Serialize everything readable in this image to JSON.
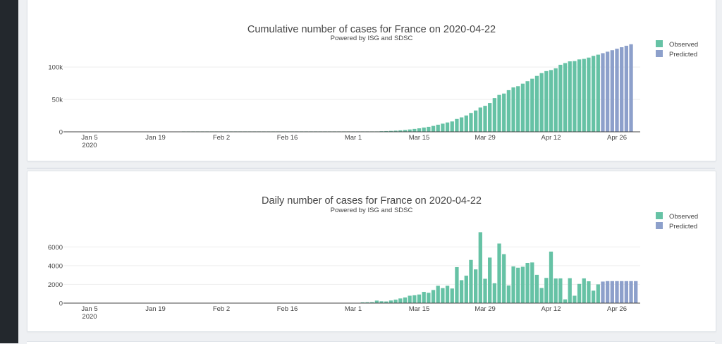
{
  "chart_data": [
    {
      "type": "bar",
      "title": "Cumulative number of cases for France on 2020-04-22",
      "subtitle": "Powered by ISG and SDSC",
      "start_date": "2020-01-01",
      "x_ticks": [
        {
          "date": "2020-01-05",
          "label": "Jan 5",
          "sublabel": "2020"
        },
        {
          "date": "2020-01-19",
          "label": "Jan 19"
        },
        {
          "date": "2020-02-02",
          "label": "Feb 2"
        },
        {
          "date": "2020-02-16",
          "label": "Feb 16"
        },
        {
          "date": "2020-03-01",
          "label": "Mar 1"
        },
        {
          "date": "2020-03-15",
          "label": "Mar 15"
        },
        {
          "date": "2020-03-29",
          "label": "Mar 29"
        },
        {
          "date": "2020-04-12",
          "label": "Apr 12"
        },
        {
          "date": "2020-04-26",
          "label": "Apr 26"
        }
      ],
      "ylim": [
        0,
        135000
      ],
      "y_ticks": [
        {
          "value": 0,
          "label": "0"
        },
        {
          "value": 50000,
          "label": "50k"
        },
        {
          "value": 100000,
          "label": "100k"
        }
      ],
      "legend_position": "top-right",
      "series": [
        {
          "name": "Observed",
          "color": "#66c2a5",
          "x": [
            "2020-01-25",
            "2020-01-26",
            "2020-01-27",
            "2020-01-28",
            "2020-01-29",
            "2020-01-30",
            "2020-01-31",
            "2020-02-01",
            "2020-02-02",
            "2020-02-03",
            "2020-02-04",
            "2020-02-05",
            "2020-02-06",
            "2020-02-07",
            "2020-02-08",
            "2020-02-09",
            "2020-02-10",
            "2020-02-11",
            "2020-02-12",
            "2020-02-13",
            "2020-02-14",
            "2020-02-15",
            "2020-02-16",
            "2020-02-17",
            "2020-02-18",
            "2020-02-19",
            "2020-02-20",
            "2020-02-21",
            "2020-02-22",
            "2020-02-23",
            "2020-02-24",
            "2020-02-25",
            "2020-02-26",
            "2020-02-27",
            "2020-02-28",
            "2020-02-29",
            "2020-03-01",
            "2020-03-02",
            "2020-03-03",
            "2020-03-04",
            "2020-03-05",
            "2020-03-06",
            "2020-03-07",
            "2020-03-08",
            "2020-03-09",
            "2020-03-10",
            "2020-03-11",
            "2020-03-12",
            "2020-03-13",
            "2020-03-14",
            "2020-03-15",
            "2020-03-16",
            "2020-03-17",
            "2020-03-18",
            "2020-03-19",
            "2020-03-20",
            "2020-03-21",
            "2020-03-22",
            "2020-03-23",
            "2020-03-24",
            "2020-03-25",
            "2020-03-26",
            "2020-03-27",
            "2020-03-28",
            "2020-03-29",
            "2020-03-30",
            "2020-03-31",
            "2020-04-01",
            "2020-04-02",
            "2020-04-03",
            "2020-04-04",
            "2020-04-05",
            "2020-04-06",
            "2020-04-07",
            "2020-04-08",
            "2020-04-09",
            "2020-04-10",
            "2020-04-11",
            "2020-04-12",
            "2020-04-13",
            "2020-04-14",
            "2020-04-15",
            "2020-04-16",
            "2020-04-17",
            "2020-04-18",
            "2020-04-19",
            "2020-04-20",
            "2020-04-21",
            "2020-04-22"
          ],
          "values": [
            3,
            3,
            3,
            4,
            4,
            5,
            6,
            6,
            6,
            6,
            6,
            6,
            6,
            6,
            11,
            11,
            11,
            11,
            11,
            11,
            11,
            12,
            12,
            12,
            12,
            12,
            12,
            12,
            12,
            12,
            12,
            14,
            18,
            38,
            57,
            100,
            130,
            191,
            204,
            288,
            380,
            656,
            957,
            1136,
            1412,
            1784,
            2281,
            2876,
            3661,
            4499,
            5423,
            6633,
            7730,
            9134,
            10995,
            12612,
            14459,
            16018,
            19856,
            22304,
            25233,
            29155,
            32964,
            37575,
            40174,
            44550,
            52128,
            56989,
            59105,
            64338,
            68605,
            70478,
            74390,
            78167,
            82048,
            86334,
            90676,
            93790,
            95403,
            98076,
            103573,
            106206,
            108847,
            109252,
            111821,
            112606,
            114657,
            117324,
            119151
          ]
        },
        {
          "name": "Predicted",
          "color": "#8da0cb",
          "x": [
            "2020-04-23",
            "2020-04-24",
            "2020-04-25",
            "2020-04-26",
            "2020-04-27",
            "2020-04-28",
            "2020-04-29"
          ],
          "values": [
            121450,
            123750,
            126050,
            128350,
            130650,
            132950,
            135250
          ]
        }
      ]
    },
    {
      "type": "bar",
      "title": "Daily number of cases for France on 2020-04-22",
      "subtitle": "Powered by ISG and SDSC",
      "start_date": "2020-01-01",
      "x_ticks": [
        {
          "date": "2020-01-05",
          "label": "Jan 5",
          "sublabel": "2020"
        },
        {
          "date": "2020-01-19",
          "label": "Jan 19"
        },
        {
          "date": "2020-02-02",
          "label": "Feb 2"
        },
        {
          "date": "2020-02-16",
          "label": "Feb 16"
        },
        {
          "date": "2020-03-01",
          "label": "Mar 1"
        },
        {
          "date": "2020-03-15",
          "label": "Mar 15"
        },
        {
          "date": "2020-03-29",
          "label": "Mar 29"
        },
        {
          "date": "2020-04-12",
          "label": "Apr 12"
        },
        {
          "date": "2020-04-26",
          "label": "Apr 26"
        }
      ],
      "ylim": [
        0,
        7600
      ],
      "y_ticks": [
        {
          "value": 0,
          "label": "0"
        },
        {
          "value": 2000,
          "label": "2000"
        },
        {
          "value": 4000,
          "label": "4000"
        },
        {
          "value": 6000,
          "label": "6000"
        }
      ],
      "legend_position": "top-right",
      "series": [
        {
          "name": "Observed",
          "color": "#66c2a5",
          "x": [
            "2020-03-03",
            "2020-03-04",
            "2020-03-05",
            "2020-03-06",
            "2020-03-07",
            "2020-03-08",
            "2020-03-09",
            "2020-03-10",
            "2020-03-11",
            "2020-03-12",
            "2020-03-13",
            "2020-03-14",
            "2020-03-15",
            "2020-03-16",
            "2020-03-17",
            "2020-03-18",
            "2020-03-19",
            "2020-03-20",
            "2020-03-21",
            "2020-03-22",
            "2020-03-23",
            "2020-03-24",
            "2020-03-25",
            "2020-03-26",
            "2020-03-27",
            "2020-03-28",
            "2020-03-29",
            "2020-03-30",
            "2020-03-31",
            "2020-04-01",
            "2020-04-02",
            "2020-04-03",
            "2020-04-04",
            "2020-04-05",
            "2020-04-06",
            "2020-04-07",
            "2020-04-08",
            "2020-04-09",
            "2020-04-10",
            "2020-04-11",
            "2020-04-12",
            "2020-04-13",
            "2020-04-14",
            "2020-04-15",
            "2020-04-16",
            "2020-04-17",
            "2020-04-18",
            "2020-04-19",
            "2020-04-20",
            "2020-04-21",
            "2020-04-22"
          ],
          "values": [
            80,
            90,
            100,
            270,
            200,
            180,
            280,
            370,
            500,
            600,
            790,
            840,
            920,
            1200,
            1100,
            1400,
            1850,
            1600,
            1850,
            1560,
            3840,
            2450,
            2930,
            4610,
            3600,
            7570,
            2600,
            4860,
            2120,
            6360,
            5230,
            1880,
            3920,
            3780,
            3880,
            4290,
            4340,
            3020,
            1610,
            2690,
            5500,
            2630,
            2640,
            400,
            2660,
            790,
            2050,
            2640,
            2330,
            1330,
            2000
          ]
        },
        {
          "name": "Predicted",
          "color": "#8da0cb",
          "x": [
            "2020-04-23",
            "2020-04-24",
            "2020-04-25",
            "2020-04-26",
            "2020-04-27",
            "2020-04-28",
            "2020-04-29",
            "2020-04-30"
          ],
          "values": [
            2300,
            2350,
            2350,
            2350,
            2350,
            2350,
            2350,
            2350
          ]
        }
      ]
    }
  ]
}
